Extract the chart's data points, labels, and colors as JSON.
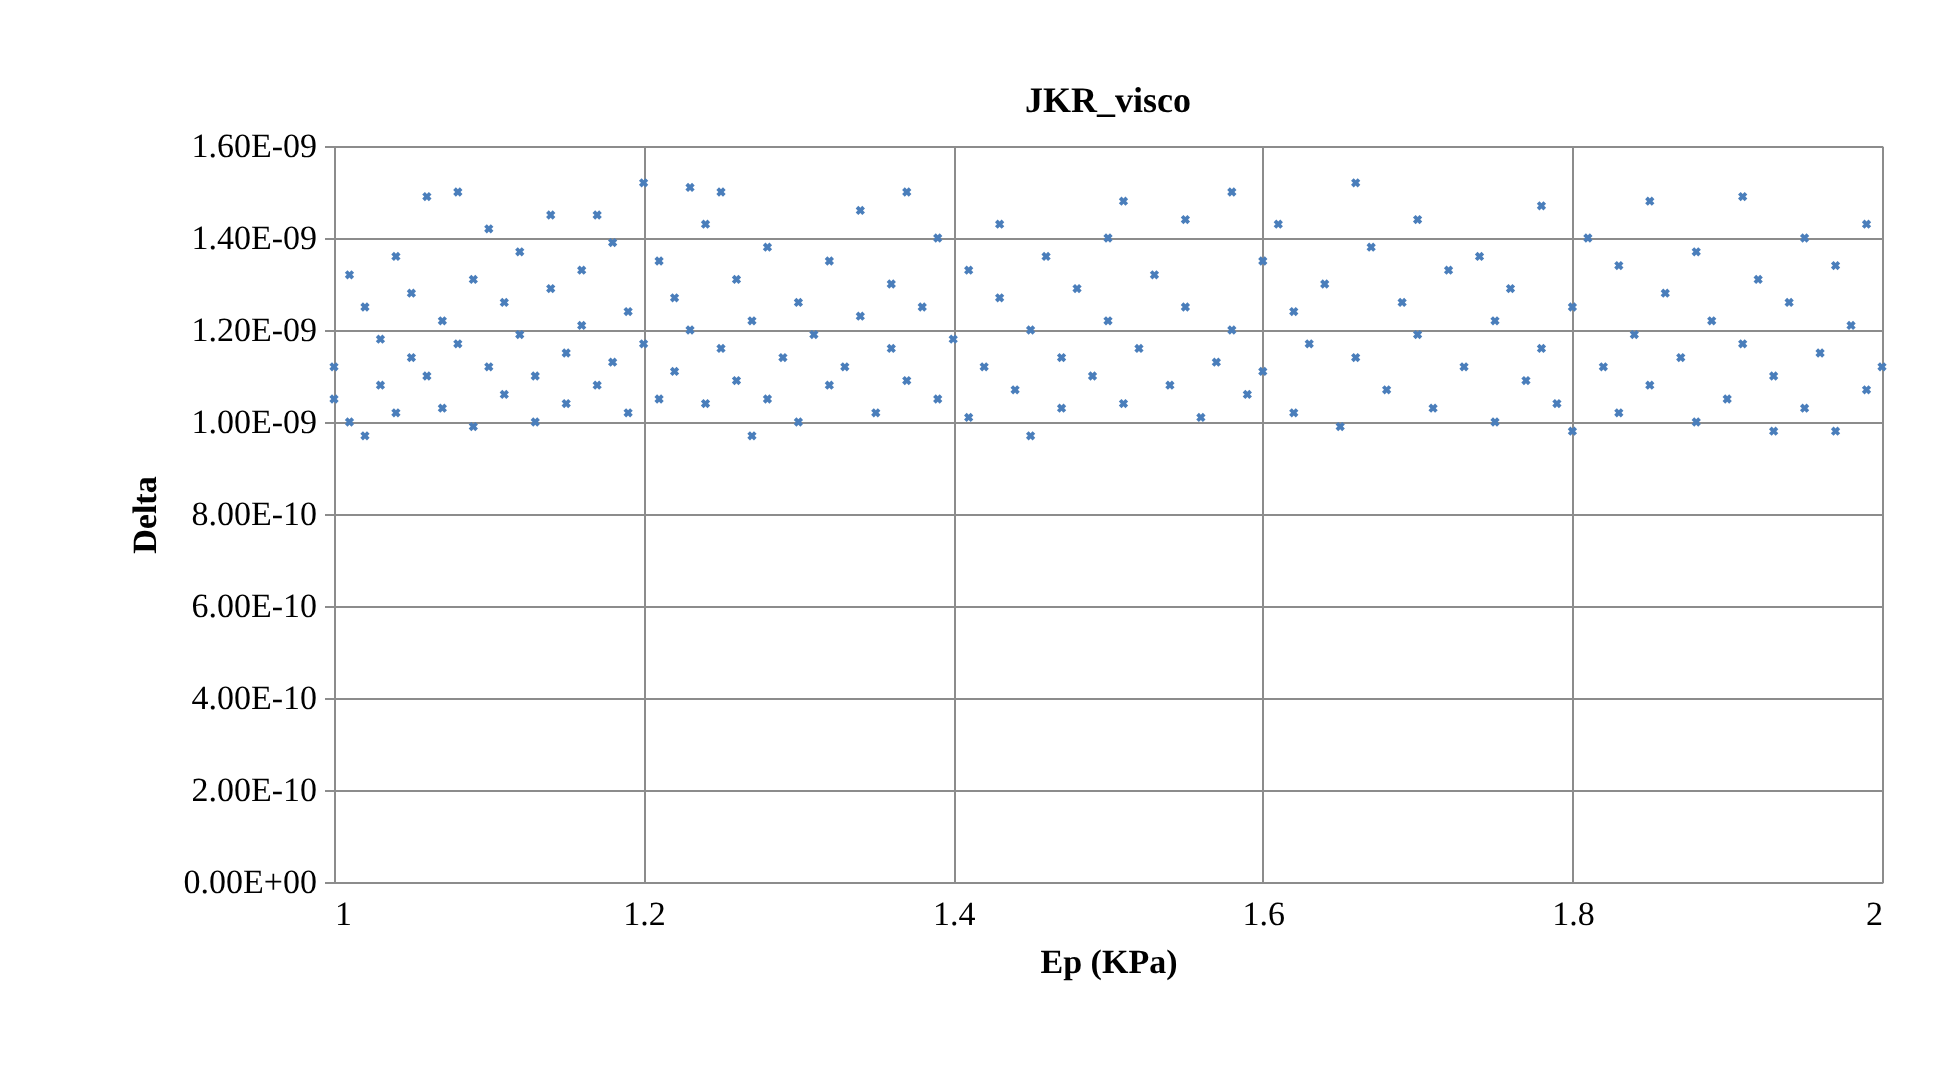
{
  "chart_data": {
    "type": "scatter",
    "title": "JKR_visco",
    "xlabel": "Ep (KPa)",
    "ylabel": "Delta",
    "x": [
      1.0,
      1.0,
      1.01,
      1.01,
      1.02,
      1.02,
      1.03,
      1.03,
      1.04,
      1.04,
      1.05,
      1.05,
      1.06,
      1.06,
      1.07,
      1.07,
      1.08,
      1.08,
      1.09,
      1.09,
      1.1,
      1.1,
      1.11,
      1.11,
      1.12,
      1.12,
      1.13,
      1.13,
      1.14,
      1.14,
      1.15,
      1.15,
      1.16,
      1.16,
      1.17,
      1.17,
      1.18,
      1.18,
      1.19,
      1.19,
      1.2,
      1.2,
      1.21,
      1.21,
      1.22,
      1.22,
      1.23,
      1.23,
      1.24,
      1.24,
      1.25,
      1.25,
      1.26,
      1.26,
      1.27,
      1.27,
      1.28,
      1.28,
      1.29,
      1.3,
      1.3,
      1.31,
      1.32,
      1.32,
      1.33,
      1.34,
      1.34,
      1.35,
      1.36,
      1.36,
      1.37,
      1.37,
      1.38,
      1.39,
      1.39,
      1.4,
      1.41,
      1.41,
      1.42,
      1.43,
      1.43,
      1.44,
      1.45,
      1.45,
      1.46,
      1.47,
      1.47,
      1.48,
      1.49,
      1.5,
      1.5,
      1.51,
      1.51,
      1.52,
      1.53,
      1.54,
      1.55,
      1.55,
      1.56,
      1.57,
      1.58,
      1.58,
      1.59,
      1.6,
      1.6,
      1.61,
      1.62,
      1.62,
      1.63,
      1.64,
      1.65,
      1.66,
      1.66,
      1.67,
      1.68,
      1.69,
      1.7,
      1.7,
      1.71,
      1.72,
      1.73,
      1.74,
      1.75,
      1.75,
      1.76,
      1.77,
      1.78,
      1.78,
      1.79,
      1.8,
      1.8,
      1.81,
      1.82,
      1.83,
      1.83,
      1.84,
      1.85,
      1.85,
      1.86,
      1.87,
      1.88,
      1.88,
      1.89,
      1.9,
      1.91,
      1.91,
      1.92,
      1.93,
      1.93,
      1.94,
      1.95,
      1.95,
      1.96,
      1.97,
      1.97,
      1.98,
      1.99,
      1.99,
      2.0
    ],
    "series": [
      {
        "color": "#4a7ebb",
        "values": [
          1.12e-09,
          1.05e-09,
          1.32e-09,
          1e-09,
          9.7e-10,
          1.25e-09,
          1.18e-09,
          1.08e-09,
          1.36e-09,
          1.02e-09,
          1.14e-09,
          1.28e-09,
          1.49e-09,
          1.1e-09,
          1.22e-09,
          1.03e-09,
          1.5e-09,
          1.17e-09,
          9.9e-10,
          1.31e-09,
          1.42e-09,
          1.12e-09,
          1.26e-09,
          1.06e-09,
          1.37e-09,
          1.19e-09,
          1e-09,
          1.1e-09,
          1.45e-09,
          1.29e-09,
          1.15e-09,
          1.04e-09,
          1.33e-09,
          1.21e-09,
          1.08e-09,
          1.45e-09,
          1.39e-09,
          1.13e-09,
          1.24e-09,
          1.02e-09,
          1.52e-09,
          1.17e-09,
          1.35e-09,
          1.05e-09,
          1.11e-09,
          1.27e-09,
          1.51e-09,
          1.2e-09,
          1.04e-09,
          1.43e-09,
          1.5e-09,
          1.16e-09,
          1.31e-09,
          1.09e-09,
          9.7e-10,
          1.22e-09,
          1.38e-09,
          1.05e-09,
          1.14e-09,
          1.26e-09,
          1e-09,
          1.19e-09,
          1.35e-09,
          1.08e-09,
          1.12e-09,
          1.46e-09,
          1.23e-09,
          1.02e-09,
          1.3e-09,
          1.16e-09,
          1.5e-09,
          1.09e-09,
          1.25e-09,
          1.4e-09,
          1.05e-09,
          1.18e-09,
          1.33e-09,
          1.01e-09,
          1.12e-09,
          1.27e-09,
          1.43e-09,
          1.07e-09,
          9.7e-10,
          1.2e-09,
          1.36e-09,
          1.14e-09,
          1.03e-09,
          1.29e-09,
          1.1e-09,
          1.4e-09,
          1.22e-09,
          1.48e-09,
          1.04e-09,
          1.16e-09,
          1.32e-09,
          1.08e-09,
          1.44e-09,
          1.25e-09,
          1.01e-09,
          1.13e-09,
          1.5e-09,
          1.2e-09,
          1.06e-09,
          1.35e-09,
          1.11e-09,
          1.43e-09,
          1.24e-09,
          1.02e-09,
          1.17e-09,
          1.3e-09,
          9.9e-10,
          1.52e-09,
          1.14e-09,
          1.38e-09,
          1.07e-09,
          1.26e-09,
          1.19e-09,
          1.44e-09,
          1.03e-09,
          1.33e-09,
          1.12e-09,
          1.36e-09,
          1e-09,
          1.22e-09,
          1.29e-09,
          1.09e-09,
          1.47e-09,
          1.16e-09,
          1.04e-09,
          9.8e-10,
          1.25e-09,
          1.4e-09,
          1.12e-09,
          1.34e-09,
          1.02e-09,
          1.19e-09,
          1.48e-09,
          1.08e-09,
          1.28e-09,
          1.14e-09,
          1e-09,
          1.37e-09,
          1.22e-09,
          1.05e-09,
          1.49e-09,
          1.17e-09,
          1.31e-09,
          9.8e-10,
          1.1e-09,
          1.26e-09,
          1.4e-09,
          1.03e-09,
          1.15e-09,
          9.8e-10,
          1.34e-09,
          1.21e-09,
          1.43e-09,
          1.07e-09,
          1.12e-09
        ]
      }
    ],
    "xlim": [
      1,
      2
    ],
    "xticks": [
      1,
      1.2,
      1.4,
      1.6,
      1.8,
      2
    ],
    "ylim": [
      0,
      1.6e-09
    ],
    "yticks": [
      {
        "value": 0,
        "label": "0.00E+00"
      },
      {
        "value": 2e-10,
        "label": "2.00E-10"
      },
      {
        "value": 4e-10,
        "label": "4.00E-10"
      },
      {
        "value": 6e-10,
        "label": "6.00E-10"
      },
      {
        "value": 8e-10,
        "label": "8.00E-10"
      },
      {
        "value": 1e-09,
        "label": "1.00E-09"
      },
      {
        "value": 1.2e-09,
        "label": "1.20E-09"
      },
      {
        "value": 1.4e-09,
        "label": "1.40E-09"
      },
      {
        "value": 1.6e-09,
        "label": "1.60E-09"
      }
    ],
    "grid": true,
    "legend": false,
    "marker": "cross"
  }
}
